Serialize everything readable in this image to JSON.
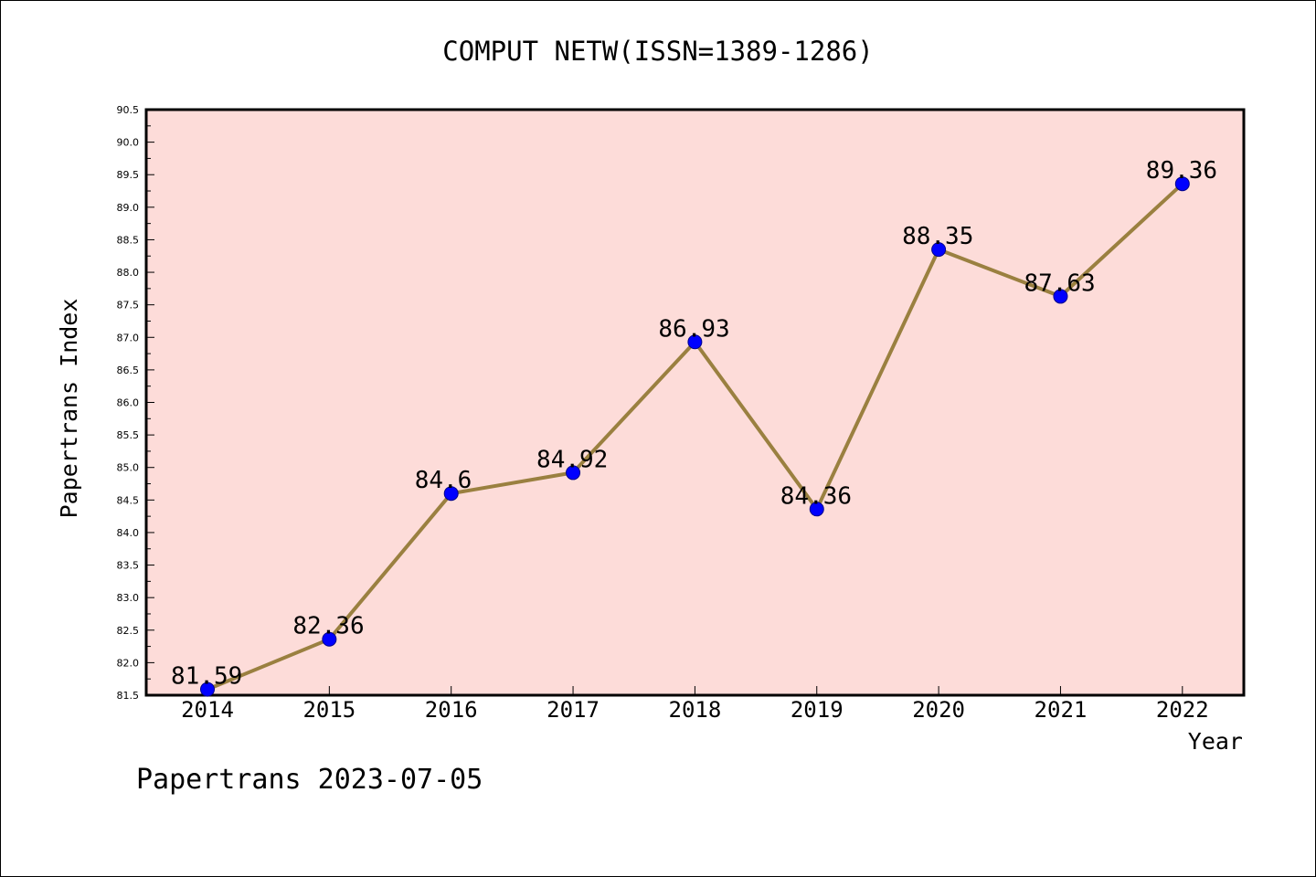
{
  "chart_data": {
    "type": "line",
    "title": "COMPUT NETW(ISSN=1389-1286)",
    "xlabel": "Year",
    "ylabel": "Papertrans Index",
    "footer": "Papertrans 2023-07-05",
    "categories": [
      "2014",
      "2015",
      "2016",
      "2017",
      "2018",
      "2019",
      "2020",
      "2021",
      "2022"
    ],
    "values": [
      81.59,
      82.36,
      84.6,
      84.92,
      86.93,
      84.36,
      88.35,
      87.63,
      89.36
    ],
    "data_labels": [
      "81.59",
      "82.36",
      "84.6",
      "84.92",
      "86.93",
      "84.36",
      "88.35",
      "87.63",
      "89.36"
    ],
    "ylim": [
      81.5,
      90.5
    ],
    "yticks": [
      "81.5",
      "82.0",
      "82.5",
      "83.0",
      "83.5",
      "84.0",
      "84.5",
      "85.0",
      "85.5",
      "86.0",
      "86.5",
      "87.0",
      "87.5",
      "88.0",
      "88.5",
      "89.0",
      "89.5",
      "90.0",
      "90.5"
    ],
    "grid": false,
    "colors": {
      "plot_background": "#fddcd9",
      "line": "#9a8040",
      "marker": "#0000ff",
      "axis": "#000000"
    }
  }
}
